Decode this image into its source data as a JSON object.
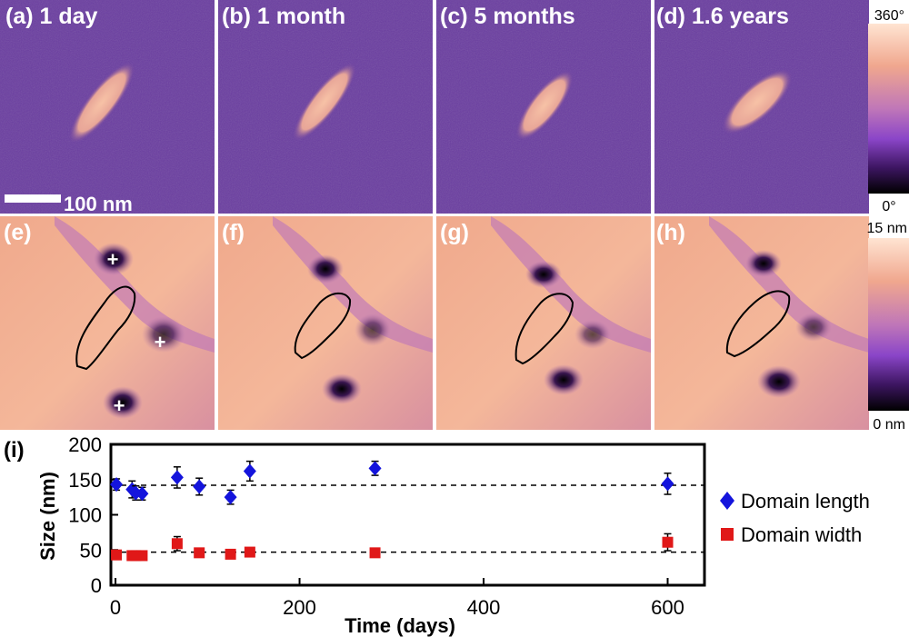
{
  "figure": {
    "phase_panels": [
      {
        "label": "(a) 1 day"
      },
      {
        "label": "(b) 1 month"
      },
      {
        "label": "(c) 5 months"
      },
      {
        "label": "(d) 1.6 years"
      }
    ],
    "topo_panels": [
      {
        "label": "(e)"
      },
      {
        "label": "(f)"
      },
      {
        "label": "(g)"
      },
      {
        "label": "(h)"
      }
    ],
    "scale_bar": "100 nm",
    "phase_colorbar": {
      "max": "360°",
      "min": "0°"
    },
    "height_colorbar": {
      "max": "15 nm",
      "min": "0 nm"
    },
    "plot_label": "(i)",
    "colors": {
      "phase_bg": "#6a3da0",
      "domain": "#f2b79a",
      "topo_bg": "#f0a98e",
      "length_marker": "#1414dc",
      "width_marker": "#e01818"
    }
  },
  "chart_data": {
    "type": "scatter",
    "title": "",
    "xlabel": "Time (days)",
    "ylabel": "Size (nm)",
    "xlim": [
      -5,
      640
    ],
    "ylim": [
      0,
      200
    ],
    "xticks": [
      0,
      200,
      400,
      600
    ],
    "yticks": [
      0,
      50,
      100,
      150,
      200
    ],
    "xtick_labels": [
      "0",
      "200",
      "400",
      "600"
    ],
    "ytick_labels": [
      "0",
      "50",
      "100",
      "150",
      "200"
    ],
    "reference_lines": [
      142,
      47
    ],
    "series": [
      {
        "name": "Domain length",
        "marker": "diamond",
        "color": "#1414dc",
        "x": [
          1,
          18,
          22,
          29,
          67,
          91,
          125,
          146,
          282,
          600
        ],
        "y": [
          143,
          136,
          131,
          130,
          153,
          140,
          125,
          162,
          166,
          144
        ],
        "err": [
          8,
          12,
          10,
          9,
          15,
          12,
          10,
          14,
          10,
          15
        ]
      },
      {
        "name": "Domain width",
        "marker": "square",
        "color": "#e01818",
        "x": [
          1,
          18,
          22,
          29,
          67,
          91,
          125,
          146,
          282,
          600
        ],
        "y": [
          43,
          42,
          42,
          42,
          59,
          46,
          44,
          47,
          46,
          61
        ],
        "err": [
          4,
          4,
          4,
          4,
          10,
          6,
          4,
          5,
          4,
          12
        ]
      }
    ],
    "legend": [
      "Domain length",
      "Domain width"
    ]
  }
}
